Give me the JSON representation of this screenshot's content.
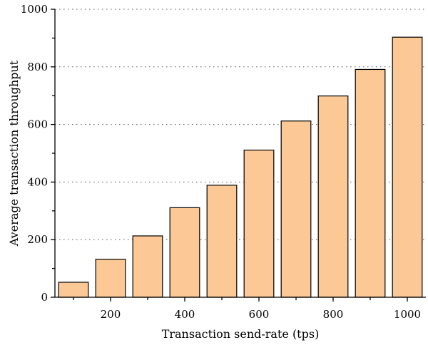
{
  "chart_data": {
    "type": "bar",
    "title": "",
    "xlabel": "Transaction send-rate (tps)",
    "ylabel": "Average transaction throughput",
    "categories": [
      100,
      200,
      300,
      400,
      500,
      600,
      700,
      800,
      900,
      1000
    ],
    "values": [
      52,
      132,
      213,
      311,
      389,
      511,
      612,
      699,
      791,
      903
    ],
    "xlim": [
      50,
      1050
    ],
    "ylim": [
      0,
      1000
    ],
    "x_ticks": [
      200,
      400,
      600,
      800,
      1000
    ],
    "y_ticks": [
      0,
      200,
      400,
      600,
      800,
      1000
    ],
    "grid": "horizontal-dotted",
    "legend": "none",
    "bar_color": "#fcc996",
    "bar_edge_color": "#000000"
  }
}
